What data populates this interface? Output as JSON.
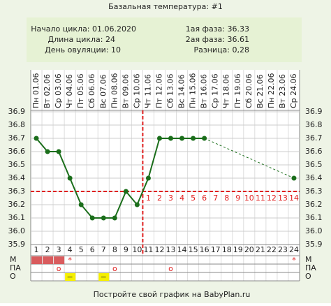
{
  "title": "Базальная температура: #1",
  "info": {
    "cycle_start": "Начало цикла: 01.06.2020",
    "cycle_length": "Длина цикла: 24",
    "ovulation": "День овуляции: 10",
    "phase1": "1ая фаза: 36.33",
    "phase2": "2ая фаза: 36.61",
    "difference": "Разница: 0,28"
  },
  "chart_data": {
    "type": "line",
    "categories": [
      1,
      2,
      3,
      4,
      5,
      6,
      7,
      8,
      9,
      10,
      11,
      12,
      13,
      14,
      15,
      16,
      17,
      18,
      19,
      20,
      21,
      22,
      23,
      24
    ],
    "dates": [
      "Пн 01.06",
      "Вт 02.06",
      "Ср 03.06",
      "Чт 04.06",
      "Пт 05.06",
      "Сб 06.06",
      "Вс 07.06",
      "Пн 08.06",
      "Вт 09.06",
      "Ср 10.06",
      "Чт 11.06",
      "Пт 12.06",
      "Сб 13.06",
      "Вс 14.06",
      "Пн 15.06",
      "Вт 16.06",
      "Ср 17.06",
      "Чт 18.06",
      "Пт 19.06",
      "Сб 20.06",
      "Вс 21.06",
      "Пн 22.06",
      "Вт 23.06",
      "Ср 24.06"
    ],
    "series": [
      {
        "color": "#1b6e1b",
        "values": [
          36.7,
          36.6,
          36.6,
          36.4,
          36.2,
          36.1,
          36.1,
          36.1,
          36.3,
          36.2,
          36.4,
          36.7,
          36.7,
          36.7,
          36.7,
          36.7,
          null,
          null,
          null,
          null,
          null,
          null,
          null,
          36.4
        ]
      }
    ],
    "ylim": [
      35.9,
      36.9
    ],
    "yticks": [
      {
        "value": 35.9,
        "label": "35.9"
      },
      {
        "value": 36,
        "label": "36.0"
      },
      36.1,
      36.2,
      36.3,
      36.4,
      36.5,
      36.6,
      36.7,
      36.8,
      36.9
    ],
    "grid": true,
    "coverline": 36.3,
    "ovulation_day": 10,
    "marker_color": "#e02020",
    "luteal_days": [
      1,
      2,
      3,
      4,
      5,
      6,
      7,
      8,
      9,
      10,
      11,
      12,
      13,
      14
    ],
    "rows": [
      {
        "label": "М",
        "filled": [
          1,
          2,
          3
        ],
        "fill_color": "#d95c5e",
        "symbol": "*",
        "symbol_days": [
          4,
          24
        ],
        "symbol_color": "#e02020"
      },
      {
        "label": "ПА",
        "symbol": "o",
        "symbol_days": [
          3,
          8,
          13
        ],
        "symbol_color": "#e02020"
      },
      {
        "label": "О",
        "filled": [
          4,
          7
        ],
        "fill_color": "#f5ef00",
        "symbol": "−",
        "symbol_days": [
          4,
          7
        ],
        "symbol_color": "#333333"
      }
    ]
  },
  "footer": "Постройте свой график на BabyPlan.ru"
}
